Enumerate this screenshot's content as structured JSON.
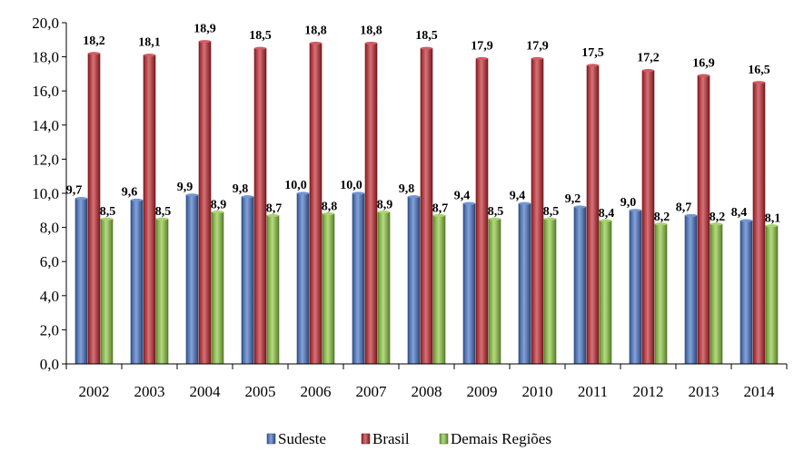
{
  "chart_data": {
    "type": "bar",
    "title": "",
    "xlabel": "",
    "ylabel": "",
    "ylim": [
      0,
      20
    ],
    "y_ticks": [
      "0,0",
      "2,0",
      "4,0",
      "6,0",
      "8,0",
      "10,0",
      "12,0",
      "14,0",
      "16,0",
      "18,0",
      "20,0"
    ],
    "categories": [
      "2002",
      "2003",
      "2004",
      "2005",
      "2006",
      "2007",
      "2008",
      "2009",
      "2010",
      "2011",
      "2012",
      "2013",
      "2014"
    ],
    "series": [
      {
        "name": "Sudeste",
        "color": "#4472C4",
        "values": [
          9.7,
          9.6,
          9.9,
          9.8,
          10.0,
          10.0,
          9.8,
          9.4,
          9.4,
          9.2,
          9.0,
          8.7,
          8.4
        ],
        "labels": [
          "9,7",
          "9,6",
          "9,9",
          "9,8",
          "10,0",
          "10,0",
          "9,8",
          "9,4",
          "9,4",
          "9,2",
          "9,0",
          "8,7",
          "8,4"
        ]
      },
      {
        "name": "Brasil",
        "color": "#C0262D",
        "values": [
          18.2,
          18.1,
          18.9,
          18.5,
          18.8,
          18.8,
          18.5,
          17.9,
          17.9,
          17.5,
          17.2,
          16.9,
          16.5
        ],
        "labels": [
          "18,2",
          "18,1",
          "18,9",
          "18,5",
          "18,8",
          "18,8",
          "18,5",
          "17,9",
          "17,9",
          "17,5",
          "17,2",
          "16,9",
          "16,5"
        ]
      },
      {
        "name": "Demais Regiões",
        "color": "#8CC63F",
        "values": [
          8.5,
          8.5,
          8.9,
          8.7,
          8.8,
          8.9,
          8.7,
          8.5,
          8.5,
          8.4,
          8.2,
          8.2,
          8.1
        ],
        "labels": [
          "8,5",
          "8,5",
          "8,9",
          "8,7",
          "8,8",
          "8,9",
          "8,7",
          "8,5",
          "8,5",
          "8,4",
          "8,2",
          "8,2",
          "8,1"
        ]
      }
    ],
    "grid": false,
    "legend_position": "bottom"
  }
}
